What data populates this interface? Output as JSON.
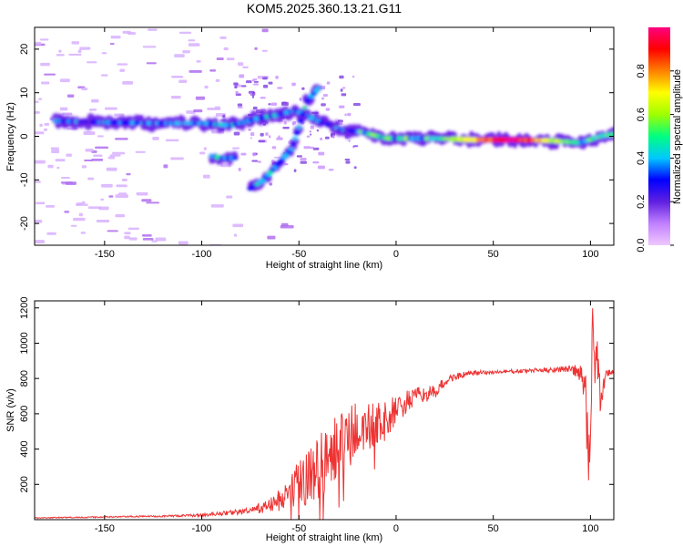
{
  "figure_title": "KOM5.2025.360.13.21.G11",
  "chart_data": [
    {
      "type": "heatmap",
      "title": "KOM5.2025.360.13.21.G11",
      "xlabel": "Height of straight line (km)",
      "ylabel": "Frequency (Hz)",
      "xlim": [
        -186,
        112
      ],
      "ylim": [
        -25,
        25
      ],
      "xticks": [
        -150,
        -100,
        -50,
        0,
        50,
        100
      ],
      "xtick_labels": [
        "-150",
        "-100",
        "-50",
        "0",
        "50",
        "100"
      ],
      "yticks": [
        -20,
        -10,
        0,
        10,
        20
      ],
      "ytick_labels": [
        "-20",
        "-10",
        "0",
        "10",
        "20"
      ],
      "colorbar": {
        "label": "Normalized spectral amplitude",
        "range": [
          0,
          1
        ],
        "ticks": [
          0,
          0.2,
          0.4,
          0.6,
          0.8
        ],
        "tick_labels": [
          "0.0",
          "0.2",
          "0.4",
          "0.6",
          "0.8"
        ],
        "colormap": [
          "#f0c8ff",
          "#c080ff",
          "#6020e0",
          "#0000ff",
          "#00c8ff",
          "#00ff80",
          "#a0ff00",
          "#ffff00",
          "#ff8000",
          "#ff0000",
          "#ff0080"
        ]
      },
      "ridges": [
        {
          "name": "main ridge",
          "points": [
            [
              -175,
              3.5
            ],
            [
              -150,
              3.2
            ],
            [
              -125,
              3.0
            ],
            [
              -100,
              3.0
            ],
            [
              -85,
              2.5
            ],
            [
              -72,
              4.0
            ],
            [
              -60,
              5.0
            ],
            [
              -52,
              6.0
            ],
            [
              -40,
              3.5
            ],
            [
              -28,
              1.5
            ],
            [
              -18,
              1.0
            ],
            [
              -5,
              -0.5
            ],
            [
              5,
              -0.5
            ],
            [
              20,
              -0.5
            ],
            [
              40,
              -0.8
            ],
            [
              60,
              -0.8
            ],
            [
              80,
              -1.0
            ],
            [
              95,
              -1.5
            ],
            [
              105,
              0.0
            ],
            [
              112,
              0.5
            ]
          ]
        },
        {
          "name": "lower branch",
          "points": [
            [
              -75,
              -12
            ],
            [
              -68,
              -10
            ],
            [
              -60,
              -6
            ],
            [
              -54,
              -3
            ],
            [
              -50,
              2
            ],
            [
              -46,
              8
            ],
            [
              -40,
              11
            ]
          ]
        },
        {
          "name": "short segment",
          "points": [
            [
              -95,
              -4.5
            ],
            [
              -90,
              -5
            ],
            [
              -83,
              -5
            ]
          ]
        }
      ],
      "peak_region": {
        "x_range": [
          20,
          95
        ],
        "frequency": -0.8,
        "amplitude": 1.0
      }
    },
    {
      "type": "line",
      "xlabel": "Height of straight line (km)",
      "ylabel": "SNR (v/v)",
      "xlim": [
        -186,
        112
      ],
      "ylim": [
        0,
        1240
      ],
      "xticks": [
        -150,
        -100,
        -50,
        0,
        50,
        100
      ],
      "xtick_labels": [
        "-150",
        "-100",
        "-50",
        "0",
        "50",
        "100"
      ],
      "yticks": [
        200,
        400,
        600,
        800,
        1000,
        1200
      ],
      "ytick_labels": [
        "200",
        "400",
        "600",
        "800",
        "1000",
        "1200"
      ],
      "line_color": "#ee3333",
      "series": [
        {
          "name": "SNR",
          "x": [
            -186,
            -150,
            -120,
            -100,
            -85,
            -75,
            -65,
            -55,
            -50,
            -45,
            -40,
            -35,
            -30,
            -25,
            -20,
            -15,
            -10,
            -5,
            0,
            10,
            20,
            25,
            30,
            40,
            50,
            60,
            70,
            80,
            90,
            95,
            97,
            98,
            99,
            100,
            101,
            102,
            103,
            105,
            108,
            112
          ],
          "values": [
            10,
            15,
            20,
            25,
            40,
            50,
            80,
            140,
            200,
            260,
            300,
            350,
            420,
            460,
            500,
            520,
            530,
            560,
            620,
            700,
            720,
            780,
            810,
            830,
            835,
            840,
            845,
            850,
            855,
            820,
            760,
            600,
            400,
            250,
            1240,
            900,
            1000,
            700,
            830,
            840
          ],
          "noise_amplitude": [
            3,
            4,
            5,
            8,
            14,
            18,
            40,
            90,
            140,
            170,
            190,
            200,
            200,
            180,
            170,
            150,
            130,
            110,
            90,
            50,
            40,
            30,
            20,
            15,
            12,
            12,
            12,
            15,
            20,
            60,
            100,
            200,
            250,
            200,
            0,
            180,
            150,
            120,
            20,
            15
          ]
        }
      ]
    }
  ]
}
